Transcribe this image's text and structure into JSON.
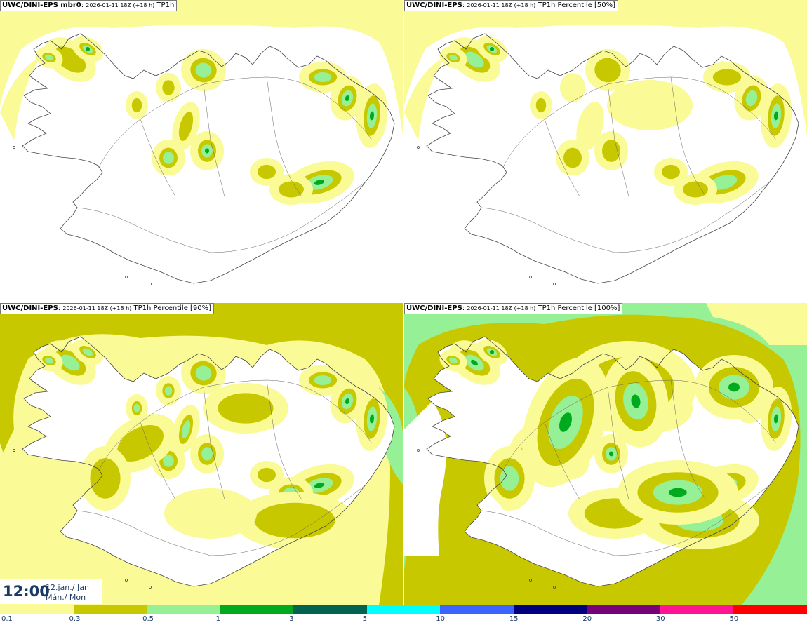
{
  "panels": [
    {
      "model": "UWC/DINI-EPS mbr0",
      "date": "2026-01-11 18Z (+18 h)",
      "field": "TP1h",
      "ocean_color": "#fafa96",
      "intensity": 0
    },
    {
      "model": "UWC/DINI-EPS",
      "date": "2026-01-11 18Z (+18 h)",
      "field": "TP1h Percentile [50%]",
      "ocean_color": "#fafa96",
      "intensity": 1
    },
    {
      "model": "UWC/DINI-EPS",
      "date": "2026-01-11 18Z (+18 h)",
      "field": "TP1h Percentile [90%]",
      "ocean_color": "#c8c800",
      "intensity": 2
    },
    {
      "model": "UWC/DINI-EPS",
      "date": "2026-01-11 18Z (+18 h)",
      "field": "TP1h Percentile [100%]",
      "ocean_color": "#96f096",
      "intensity": 3
    }
  ],
  "time": {
    "clock": "12:00",
    "date_line1": "12.jan./ Jan",
    "date_line2": "Mán./ Mon"
  },
  "legend": {
    "bins": [
      {
        "color": "#fafa96"
      },
      {
        "color": "#c8c800"
      },
      {
        "color": "#96f096"
      },
      {
        "color": "#00aa1e"
      },
      {
        "color": "#006450"
      },
      {
        "color": "#00ffff"
      },
      {
        "color": "#3c64ff"
      },
      {
        "color": "#00007d"
      },
      {
        "color": "#780078"
      },
      {
        "color": "#ff1493"
      },
      {
        "color": "#ff0000"
      }
    ],
    "ticks": [
      "0.1",
      "0.3",
      "0.5",
      "1",
      "3",
      "5",
      "10",
      "15",
      "20",
      "30",
      "50"
    ]
  }
}
